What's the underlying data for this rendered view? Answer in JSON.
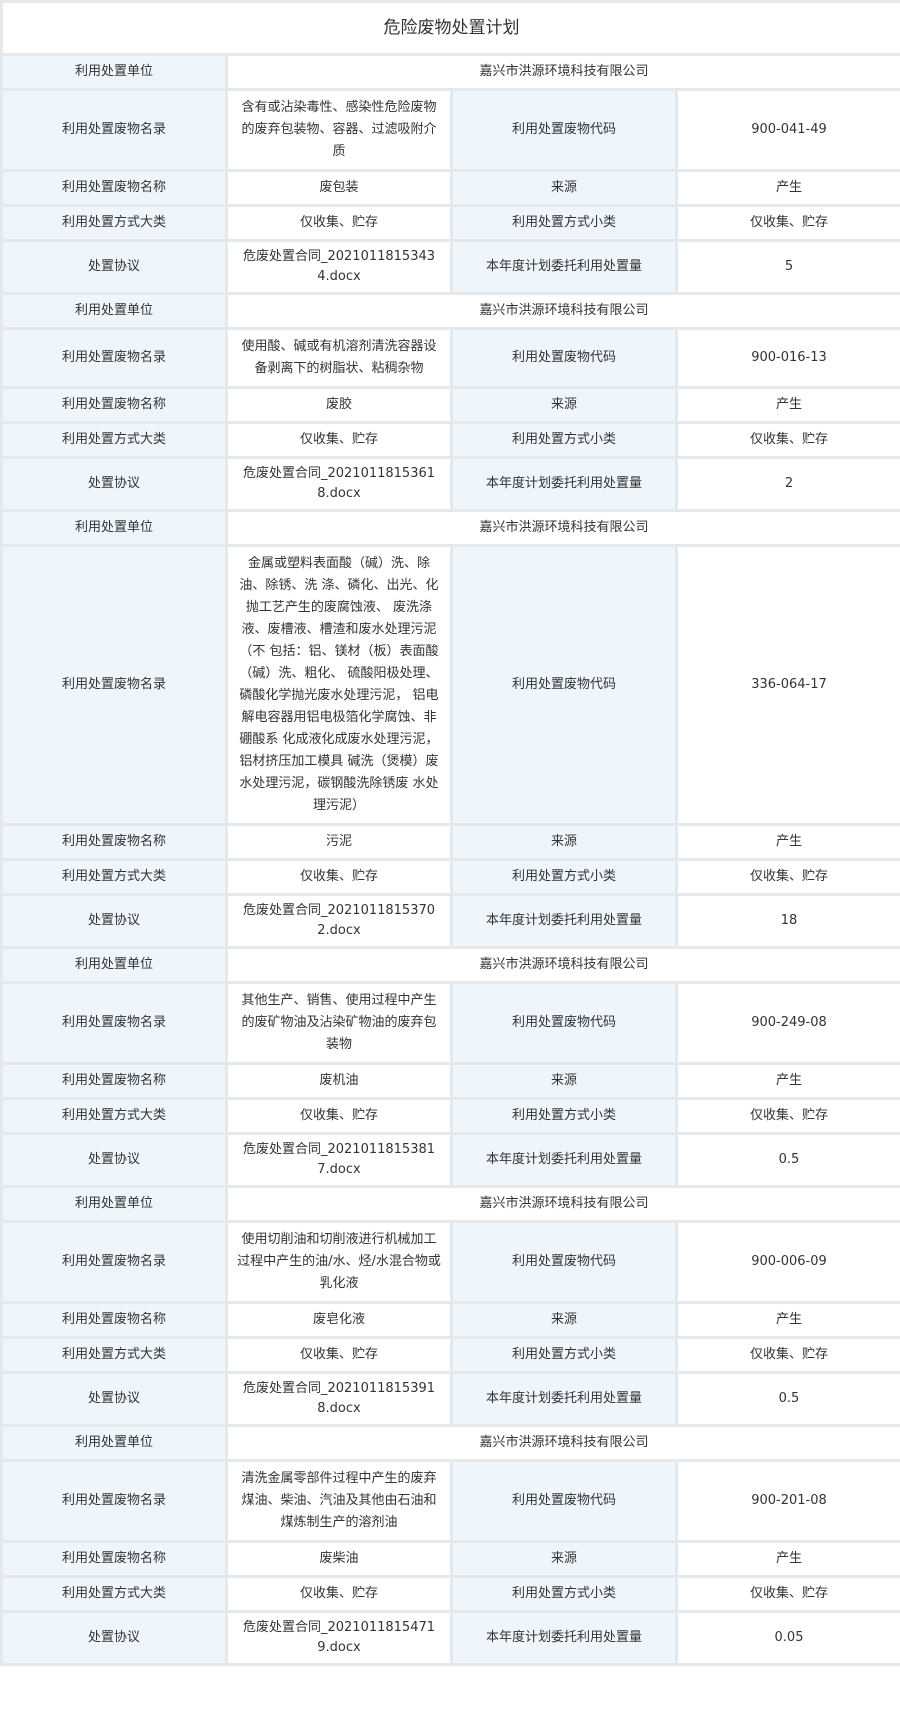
{
  "title": "危险废物处置计划",
  "labels": {
    "unit": "利用处置单位",
    "catalog": "利用处置废物名录",
    "code": "利用处置废物代码",
    "name": "利用处置废物名称",
    "source": "来源",
    "method_major": "利用处置方式大类",
    "method_minor": "利用处置方式小类",
    "agreement": "处置协议",
    "annual_amount": "本年度计划委托利用处置量"
  },
  "records": [
    {
      "unit": "嘉兴市洪源环境科技有限公司",
      "catalog": "含有或沾染毒性、感染性危险废物的废弃包装物、容器、过滤吸附介质",
      "code": "900-041-49",
      "name": "废包装",
      "source": "产生",
      "method_major": "仅收集、贮存",
      "method_minor": "仅收集、贮存",
      "agreement": "危废处置合同_20210118153434.docx",
      "annual_amount": "5"
    },
    {
      "unit": "嘉兴市洪源环境科技有限公司",
      "catalog": "使用酸、碱或有机溶剂清洗容器设备剥离下的树脂状、粘稠杂物",
      "code": "900-016-13",
      "name": "废胶",
      "source": "产生",
      "method_major": "仅收集、贮存",
      "method_minor": "仅收集、贮存",
      "agreement": "危废处置合同_20210118153618.docx",
      "annual_amount": "2"
    },
    {
      "unit": "嘉兴市洪源环境科技有限公司",
      "catalog": "金属或塑料表面酸（碱）洗、除油、除锈、洗 涤、磷化、出光、化抛工艺产生的废腐蚀液、 废洗涤液、废槽液、槽渣和废水处理污泥（不 包括：铝、镁材（板）表面酸（碱）洗、粗化、 硫酸阳极处理、磷酸化学抛光废水处理污泥， 铝电解电容器用铝电极箔化学腐蚀、非硼酸系 化成液化成废水处理污泥，铝材挤压加工模具 碱洗（煲模）废水处理污泥，碳钢酸洗除锈废 水处理污泥）",
      "code": "336-064-17",
      "name": "污泥",
      "source": "产生",
      "method_major": "仅收集、贮存",
      "method_minor": "仅收集、贮存",
      "agreement": "危废处置合同_20210118153702.docx",
      "annual_amount": "18"
    },
    {
      "unit": "嘉兴市洪源环境科技有限公司",
      "catalog": "其他生产、销售、使用过程中产生的废矿物油及沾染矿物油的废弃包装物",
      "code": "900-249-08",
      "name": "废机油",
      "source": "产生",
      "method_major": "仅收集、贮存",
      "method_minor": "仅收集、贮存",
      "agreement": "危废处置合同_20210118153817.docx",
      "annual_amount": "0.5"
    },
    {
      "unit": "嘉兴市洪源环境科技有限公司",
      "catalog": "使用切削油和切削液进行机械加工过程中产生的油/水、烃/水混合物或乳化液",
      "code": "900-006-09",
      "name": "废皂化液",
      "source": "产生",
      "method_major": "仅收集、贮存",
      "method_minor": "仅收集、贮存",
      "agreement": "危废处置合同_20210118153918.docx",
      "annual_amount": "0.5"
    },
    {
      "unit": "嘉兴市洪源环境科技有限公司",
      "catalog": "清洗金属零部件过程中产生的废弃煤油、柴油、汽油及其他由石油和煤炼制生产的溶剂油",
      "code": "900-201-08",
      "name": "废柴油",
      "source": "产生",
      "method_major": "仅收集、贮存",
      "method_minor": "仅收集、贮存",
      "agreement": "危废处置合同_20210118154719.docx",
      "annual_amount": "0.05"
    }
  ]
}
